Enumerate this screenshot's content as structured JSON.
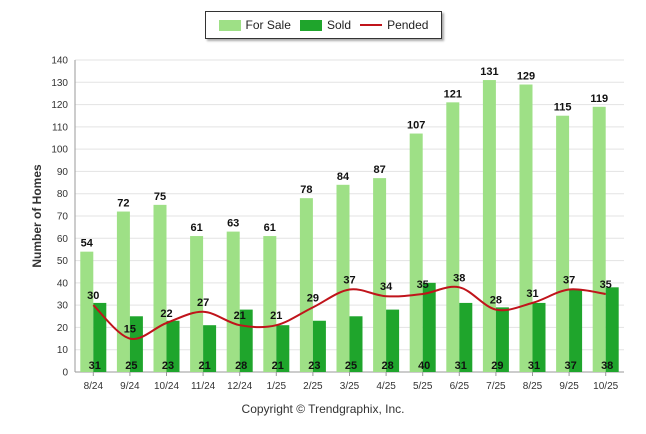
{
  "chart_data": {
    "type": "bar",
    "categories": [
      "8/24",
      "9/24",
      "10/24",
      "11/24",
      "12/24",
      "1/25",
      "2/25",
      "3/25",
      "4/25",
      "5/25",
      "6/25",
      "7/25",
      "8/25",
      "9/25",
      "10/25"
    ],
    "series": [
      {
        "name": "For Sale",
        "kind": "bar",
        "color": "#9ee086",
        "values": [
          54,
          72,
          75,
          61,
          63,
          61,
          78,
          84,
          87,
          107,
          121,
          131,
          129,
          115,
          119
        ]
      },
      {
        "name": "Sold",
        "kind": "bar",
        "color": "#1fa52c",
        "values": [
          31,
          25,
          23,
          21,
          28,
          21,
          23,
          25,
          28,
          40,
          31,
          29,
          31,
          37,
          38
        ]
      },
      {
        "name": "Pended",
        "kind": "line",
        "color": "#c0141b",
        "values": [
          30,
          15,
          22,
          27,
          21,
          21,
          29,
          37,
          34,
          35,
          38,
          28,
          31,
          37,
          35
        ]
      }
    ],
    "ylabel": "Number of Homes",
    "xlabel": "",
    "ylim": [
      0,
      140
    ],
    "yticks": [
      0,
      10,
      20,
      30,
      40,
      50,
      60,
      70,
      80,
      90,
      100,
      110,
      120,
      130,
      140
    ],
    "legend_position": "top-center",
    "grid": true
  },
  "footer": {
    "copyright": "Copyright © Trendgraphix, Inc."
  }
}
